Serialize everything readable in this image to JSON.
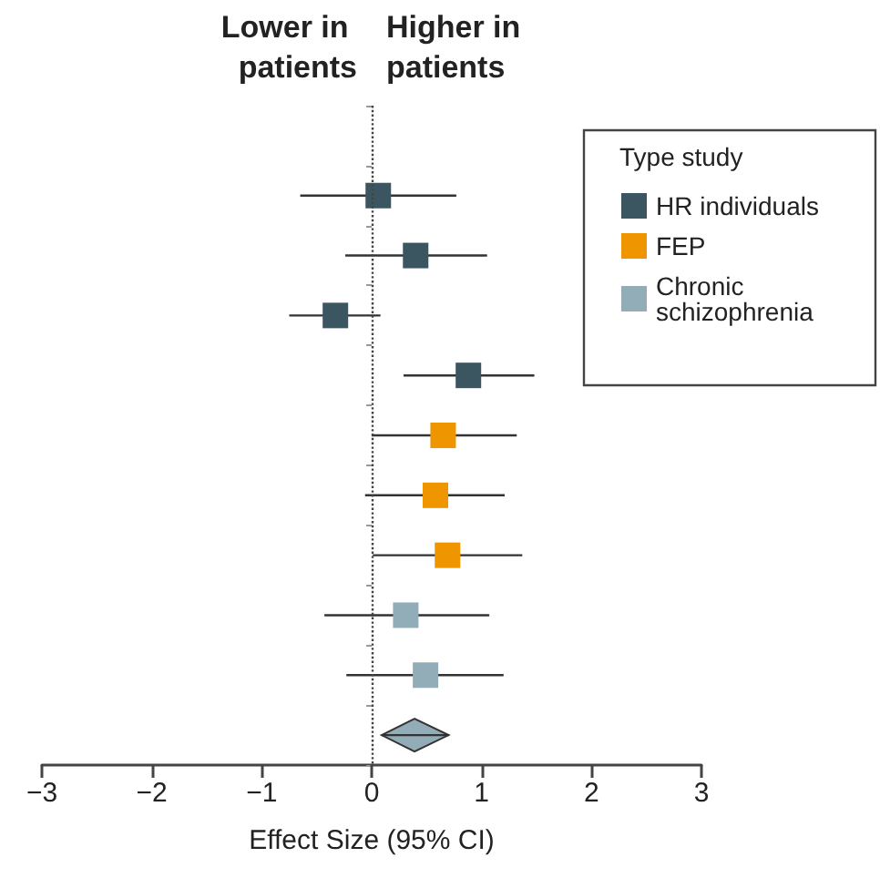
{
  "chart_data": {
    "type": "scatter",
    "orientation": "horizontal",
    "xlabel": "Effect Size (95% CI)",
    "legend_title": "Type study",
    "legend": "top right",
    "marker": "square",
    "grid": false,
    "categories": [
      null,
      null,
      null,
      null,
      null,
      null,
      null,
      null,
      null,
      null,
      null
    ],
    "xlim": [
      -3,
      3
    ],
    "xticks": [
      -3,
      -2,
      -1,
      0,
      1,
      2,
      3
    ],
    "annotations": [
      "Lower in patients",
      "Higher in patients"
    ],
    "ref_lines": [
      {
        "axis": "x",
        "value": 0,
        "line_style": "dotted",
        "color": "#444444"
      }
    ],
    "series": [
      {
        "name": "HR individuals",
        "color": "#3b5561",
        "values": [
          null,
          0.06,
          0.4,
          -0.33,
          0.88,
          null,
          null,
          null,
          null,
          null,
          null
        ],
        "errors": [
          null,
          [
            -0.65,
            0.77
          ],
          [
            -0.24,
            1.05
          ],
          [
            -0.75,
            0.08
          ],
          [
            0.29,
            1.48
          ],
          null,
          null,
          null,
          null,
          null,
          null
        ]
      },
      {
        "name": "FEP",
        "color": "#ee9500",
        "values": [
          null,
          null,
          null,
          null,
          null,
          0.65,
          0.58,
          0.69,
          null,
          null,
          null
        ],
        "errors": [
          null,
          null,
          null,
          null,
          null,
          [
            0.0,
            1.32
          ],
          [
            -0.06,
            1.21
          ],
          [
            0.01,
            1.37
          ],
          null,
          null,
          null
        ]
      },
      {
        "name": "Chronic schizophrenia",
        "color": "#93adb8",
        "values": [
          null,
          null,
          null,
          null,
          null,
          null,
          null,
          null,
          0.31,
          0.49,
          null
        ],
        "errors": [
          null,
          null,
          null,
          null,
          null,
          null,
          null,
          null,
          [
            -0.43,
            1.07
          ],
          [
            -0.23,
            1.2
          ],
          null
        ]
      },
      {
        "color": "#93adb8",
        "marker": "diamond",
        "values": [
          null,
          null,
          null,
          null,
          null,
          null,
          null,
          null,
          null,
          null,
          0.39
        ],
        "errors": [
          null,
          null,
          null,
          null,
          null,
          null,
          null,
          null,
          null,
          null,
          [
            0.09,
            0.7
          ]
        ]
      }
    ]
  }
}
